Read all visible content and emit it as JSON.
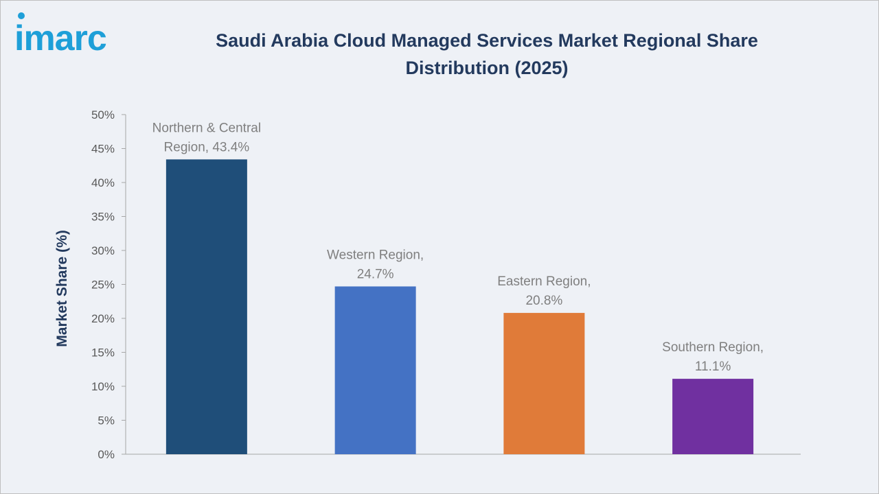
{
  "brand": {
    "logo_text": "imarc",
    "color": "#1e9fd8"
  },
  "chart_data": {
    "type": "bar",
    "title": "Saudi Arabia Cloud Managed Services Market Regional Share Distribution (2025)",
    "xlabel": "",
    "ylabel": "Market Share (%)",
    "ylim": [
      0,
      50
    ],
    "y_ticks": [
      0,
      5,
      10,
      15,
      20,
      25,
      30,
      35,
      40,
      45,
      50
    ],
    "y_tick_labels": [
      "0%",
      "5%",
      "10%",
      "15%",
      "20%",
      "25%",
      "30%",
      "35%",
      "40%",
      "45%",
      "50%"
    ],
    "categories": [
      "Northern & Central Region",
      "Western Region",
      "Eastern Region",
      "Southern Region"
    ],
    "values": [
      43.4,
      24.7,
      20.8,
      11.1
    ],
    "data_labels": [
      [
        "Northern & Central",
        "Region, 43.4%"
      ],
      [
        "Western Region,",
        "24.7%"
      ],
      [
        "Eastern Region,",
        "20.8%"
      ],
      [
        "Southern Region,",
        "11.1%"
      ]
    ],
    "colors": [
      "#1f4e79",
      "#4472c4",
      "#e07b39",
      "#7030a0"
    ],
    "grid": false,
    "legend": "none"
  }
}
